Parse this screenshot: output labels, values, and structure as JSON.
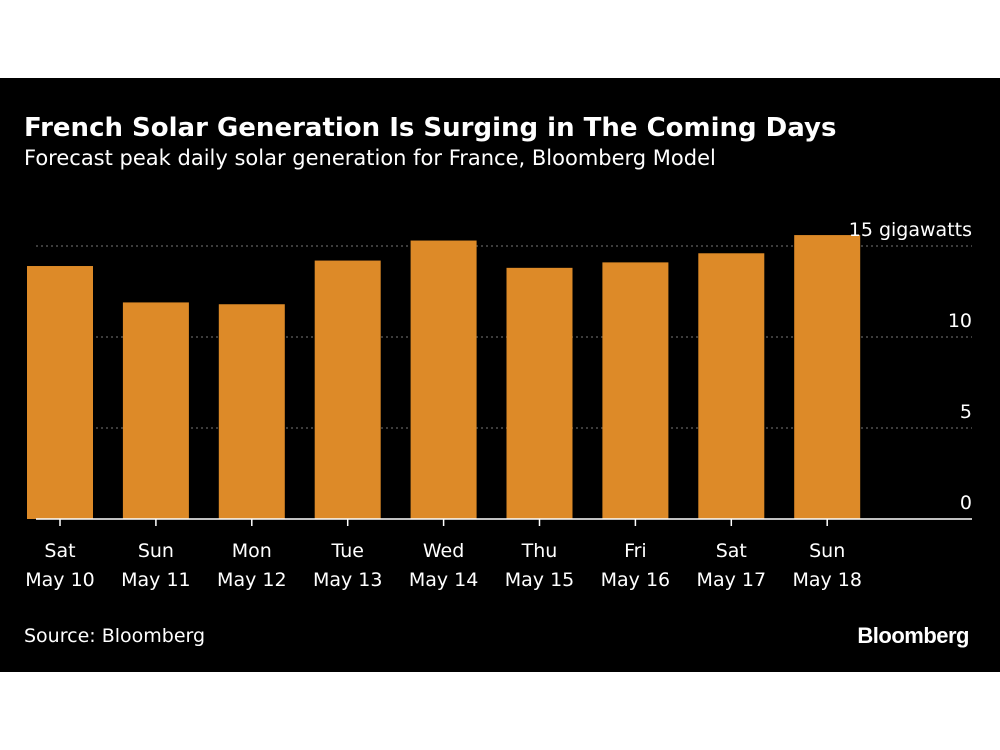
{
  "header": {
    "title": "French Solar Generation Is Surging in The Coming Days",
    "subtitle": "Forecast peak daily solar generation for France, Bloomberg Model"
  },
  "footer": {
    "source": "Source: Bloomberg",
    "brand": "Bloomberg"
  },
  "colors": {
    "background": "#000000",
    "bar": "#DD8A28",
    "gridline": "#777777",
    "text": "#FFFFFF"
  },
  "chart_data": {
    "type": "bar",
    "title": "French Solar Generation Is Surging in The Coming Days",
    "subtitle": "Forecast peak daily solar generation for France, Bloomberg Model",
    "categories": [
      [
        "Sat",
        "May 10"
      ],
      [
        "Sun",
        "May 11"
      ],
      [
        "Mon",
        "May 12"
      ],
      [
        "Tue",
        "May 13"
      ],
      [
        "Wed",
        "May 14"
      ],
      [
        "Thu",
        "May 15"
      ],
      [
        "Fri",
        "May 16"
      ],
      [
        "Sat",
        "May 17"
      ],
      [
        "Sun",
        "May 18"
      ]
    ],
    "values": [
      13.9,
      11.9,
      11.8,
      14.2,
      15.3,
      13.8,
      14.1,
      14.6,
      15.6
    ],
    "yticks": [
      {
        "value": 0,
        "label": "0"
      },
      {
        "value": 5,
        "label": "5"
      },
      {
        "value": 10,
        "label": "10"
      },
      {
        "value": 15,
        "label": "15 gigawatts"
      }
    ],
    "ylim": [
      0,
      15.8
    ],
    "y_axis_side": "right",
    "grid": "horizontal dotted",
    "legend": "none"
  }
}
